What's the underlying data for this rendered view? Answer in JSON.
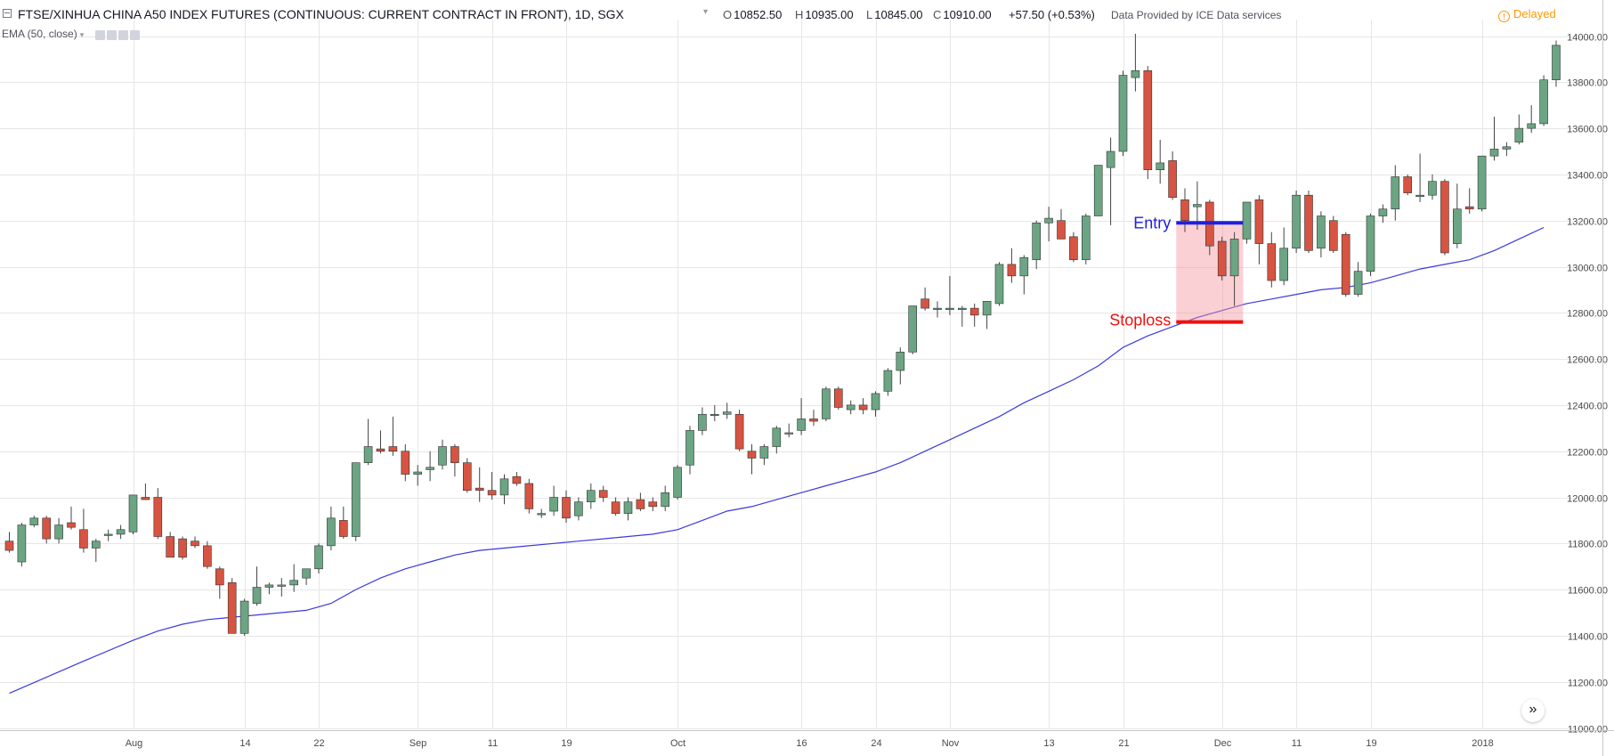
{
  "header": {
    "symbol": "FTSE/XINHUA CHINA A50 INDEX FUTURES (CONTINUOUS: CURRENT CONTRACT IN FRONT), 1D, SGX",
    "open_label": "O",
    "open_value": "10852.50",
    "high_label": "H",
    "high_value": "10935.00",
    "low_label": "L",
    "low_value": "10845.00",
    "close_label": "C",
    "close_value": "10910.00",
    "change": "+57.50 (+0.53%)",
    "provider": "Data Provided by ICE Data services",
    "delayed_label": "Delayed",
    "delayed_icon": "!"
  },
  "indicator": {
    "label": "EMA (50, close)"
  },
  "scroll_button": {
    "icon": "»"
  },
  "colors": {
    "up": "#6ba583",
    "down": "#d75442",
    "wick": "#444444",
    "ema": "#3a3adc",
    "entry": "#1f1fe0",
    "stoploss": "#ee1111",
    "zone": "rgba(247,150,160,0.45)",
    "grid": "#e6e6e6"
  },
  "chart_data": {
    "type": "candlestick",
    "ylim": [
      11000,
      14000
    ],
    "y_ticks": [
      "14000.00",
      "13800.00",
      "13600.00",
      "13400.00",
      "13200.00",
      "13000.00",
      "12800.00",
      "12600.00",
      "12400.00",
      "12200.00",
      "12000.00",
      "11800.00",
      "11600.00",
      "11400.00",
      "11200.00",
      "11000.00"
    ],
    "x_ticks": [
      {
        "label": "Aug",
        "index": 10
      },
      {
        "label": "14",
        "index": 19
      },
      {
        "label": "22",
        "index": 25
      },
      {
        "label": "Sep",
        "index": 33
      },
      {
        "label": "11",
        "index": 39
      },
      {
        "label": "19",
        "index": 45
      },
      {
        "label": "Oct",
        "index": 54
      },
      {
        "label": "16",
        "index": 64
      },
      {
        "label": "24",
        "index": 70
      },
      {
        "label": "Nov",
        "index": 76
      },
      {
        "label": "13",
        "index": 84
      },
      {
        "label": "21",
        "index": 90
      },
      {
        "label": "Dec",
        "index": 98
      },
      {
        "label": "11",
        "index": 104
      },
      {
        "label": "19",
        "index": 110
      },
      {
        "label": "2018",
        "index": 119
      }
    ],
    "candles": [
      {
        "o": 11810,
        "h": 11850,
        "l": 11760,
        "c": 11770
      },
      {
        "o": 11720,
        "h": 11890,
        "l": 11700,
        "c": 11880
      },
      {
        "o": 11880,
        "h": 11920,
        "l": 11870,
        "c": 11910
      },
      {
        "o": 11910,
        "h": 11920,
        "l": 11800,
        "c": 11820
      },
      {
        "o": 11820,
        "h": 11910,
        "l": 11800,
        "c": 11880
      },
      {
        "o": 11890,
        "h": 11960,
        "l": 11860,
        "c": 11870
      },
      {
        "o": 11860,
        "h": 11950,
        "l": 11760,
        "c": 11780
      },
      {
        "o": 11780,
        "h": 11820,
        "l": 11720,
        "c": 11810
      },
      {
        "o": 11840,
        "h": 11860,
        "l": 11810,
        "c": 11840
      },
      {
        "o": 11840,
        "h": 11880,
        "l": 11820,
        "c": 11860
      },
      {
        "o": 11850,
        "h": 12010,
        "l": 11840,
        "c": 12010
      },
      {
        "o": 12000,
        "h": 12060,
        "l": 11990,
        "c": 11990
      },
      {
        "o": 12000,
        "h": 12040,
        "l": 11820,
        "c": 11830
      },
      {
        "o": 11830,
        "h": 11850,
        "l": 11740,
        "c": 11740
      },
      {
        "o": 11820,
        "h": 11830,
        "l": 11730,
        "c": 11740
      },
      {
        "o": 11810,
        "h": 11830,
        "l": 11780,
        "c": 11790
      },
      {
        "o": 11790,
        "h": 11810,
        "l": 11690,
        "c": 11700
      },
      {
        "o": 11690,
        "h": 11700,
        "l": 11560,
        "c": 11620
      },
      {
        "o": 11630,
        "h": 11650,
        "l": 11410,
        "c": 11410
      },
      {
        "o": 11410,
        "h": 11560,
        "l": 11400,
        "c": 11550
      },
      {
        "o": 11540,
        "h": 11700,
        "l": 11530,
        "c": 11610
      },
      {
        "o": 11610,
        "h": 11630,
        "l": 11580,
        "c": 11620
      },
      {
        "o": 11620,
        "h": 11650,
        "l": 11570,
        "c": 11620
      },
      {
        "o": 11620,
        "h": 11710,
        "l": 11590,
        "c": 11640
      },
      {
        "o": 11650,
        "h": 11690,
        "l": 11620,
        "c": 11690
      },
      {
        "o": 11690,
        "h": 11800,
        "l": 11670,
        "c": 11790
      },
      {
        "o": 11790,
        "h": 11960,
        "l": 11770,
        "c": 11910
      },
      {
        "o": 11900,
        "h": 11960,
        "l": 11820,
        "c": 11830
      },
      {
        "o": 11830,
        "h": 12150,
        "l": 11810,
        "c": 12150
      },
      {
        "o": 12150,
        "h": 12340,
        "l": 12140,
        "c": 12220
      },
      {
        "o": 12210,
        "h": 12290,
        "l": 12190,
        "c": 12200
      },
      {
        "o": 12220,
        "h": 12350,
        "l": 12180,
        "c": 12200
      },
      {
        "o": 12200,
        "h": 12230,
        "l": 12070,
        "c": 12100
      },
      {
        "o": 12100,
        "h": 12140,
        "l": 12050,
        "c": 12110
      },
      {
        "o": 12120,
        "h": 12200,
        "l": 12070,
        "c": 12130
      },
      {
        "o": 12140,
        "h": 12250,
        "l": 12120,
        "c": 12220
      },
      {
        "o": 12220,
        "h": 12230,
        "l": 12090,
        "c": 12150
      },
      {
        "o": 12150,
        "h": 12170,
        "l": 12020,
        "c": 12030
      },
      {
        "o": 12040,
        "h": 12130,
        "l": 11980,
        "c": 12030
      },
      {
        "o": 12030,
        "h": 12110,
        "l": 11990,
        "c": 12010
      },
      {
        "o": 12010,
        "h": 12100,
        "l": 11970,
        "c": 12080
      },
      {
        "o": 12090,
        "h": 12110,
        "l": 12050,
        "c": 12060
      },
      {
        "o": 12060,
        "h": 12080,
        "l": 11930,
        "c": 11950
      },
      {
        "o": 11930,
        "h": 11950,
        "l": 11910,
        "c": 11930
      },
      {
        "o": 11940,
        "h": 12050,
        "l": 11920,
        "c": 12000
      },
      {
        "o": 12000,
        "h": 12030,
        "l": 11890,
        "c": 11910
      },
      {
        "o": 11920,
        "h": 12000,
        "l": 11900,
        "c": 11980
      },
      {
        "o": 11980,
        "h": 12060,
        "l": 11950,
        "c": 12030
      },
      {
        "o": 12030,
        "h": 12050,
        "l": 11980,
        "c": 12000
      },
      {
        "o": 11980,
        "h": 12000,
        "l": 11920,
        "c": 11930
      },
      {
        "o": 11930,
        "h": 12000,
        "l": 11900,
        "c": 11980
      },
      {
        "o": 11990,
        "h": 12020,
        "l": 11940,
        "c": 11950
      },
      {
        "o": 11980,
        "h": 12000,
        "l": 11940,
        "c": 11960
      },
      {
        "o": 11960,
        "h": 12050,
        "l": 11940,
        "c": 12020
      },
      {
        "o": 12000,
        "h": 12140,
        "l": 11990,
        "c": 12130
      },
      {
        "o": 12140,
        "h": 12310,
        "l": 12100,
        "c": 12290
      },
      {
        "o": 12290,
        "h": 12390,
        "l": 12270,
        "c": 12360
      },
      {
        "o": 12360,
        "h": 12400,
        "l": 12330,
        "c": 12360
      },
      {
        "o": 12360,
        "h": 12410,
        "l": 12340,
        "c": 12370
      },
      {
        "o": 12360,
        "h": 12380,
        "l": 12200,
        "c": 12210
      },
      {
        "o": 12200,
        "h": 12230,
        "l": 12100,
        "c": 12170
      },
      {
        "o": 12170,
        "h": 12230,
        "l": 12140,
        "c": 12220
      },
      {
        "o": 12220,
        "h": 12310,
        "l": 12190,
        "c": 12300
      },
      {
        "o": 12280,
        "h": 12320,
        "l": 12260,
        "c": 12280
      },
      {
        "o": 12290,
        "h": 12430,
        "l": 12270,
        "c": 12340
      },
      {
        "o": 12340,
        "h": 12380,
        "l": 12310,
        "c": 12330
      },
      {
        "o": 12340,
        "h": 12480,
        "l": 12330,
        "c": 12470
      },
      {
        "o": 12470,
        "h": 12480,
        "l": 12380,
        "c": 12390
      },
      {
        "o": 12380,
        "h": 12420,
        "l": 12360,
        "c": 12400
      },
      {
        "o": 12400,
        "h": 12430,
        "l": 12360,
        "c": 12380
      },
      {
        "o": 12380,
        "h": 12460,
        "l": 12350,
        "c": 12450
      },
      {
        "o": 12460,
        "h": 12560,
        "l": 12440,
        "c": 12550
      },
      {
        "o": 12550,
        "h": 12650,
        "l": 12490,
        "c": 12630
      },
      {
        "o": 12630,
        "h": 12830,
        "l": 12620,
        "c": 12830
      },
      {
        "o": 12860,
        "h": 12910,
        "l": 12810,
        "c": 12820
      },
      {
        "o": 12820,
        "h": 12850,
        "l": 12780,
        "c": 12820
      },
      {
        "o": 12820,
        "h": 12960,
        "l": 12790,
        "c": 12820
      },
      {
        "o": 12820,
        "h": 12830,
        "l": 12740,
        "c": 12820
      },
      {
        "o": 12820,
        "h": 12840,
        "l": 12740,
        "c": 12790
      },
      {
        "o": 12790,
        "h": 12850,
        "l": 12730,
        "c": 12850
      },
      {
        "o": 12840,
        "h": 13020,
        "l": 12830,
        "c": 13010
      },
      {
        "o": 13010,
        "h": 13080,
        "l": 12930,
        "c": 12960
      },
      {
        "o": 12960,
        "h": 13050,
        "l": 12880,
        "c": 13040
      },
      {
        "o": 13030,
        "h": 13200,
        "l": 12990,
        "c": 13190
      },
      {
        "o": 13190,
        "h": 13260,
        "l": 13110,
        "c": 13210
      },
      {
        "o": 13200,
        "h": 13250,
        "l": 13120,
        "c": 13120
      },
      {
        "o": 13130,
        "h": 13150,
        "l": 13020,
        "c": 13030
      },
      {
        "o": 13030,
        "h": 13230,
        "l": 13010,
        "c": 13220
      },
      {
        "o": 13220,
        "h": 13440,
        "l": 13220,
        "c": 13440
      },
      {
        "o": 13430,
        "h": 13560,
        "l": 13180,
        "c": 13500
      },
      {
        "o": 13500,
        "h": 13850,
        "l": 13480,
        "c": 13830
      },
      {
        "o": 13820,
        "h": 14010,
        "l": 13760,
        "c": 13850
      },
      {
        "o": 13850,
        "h": 13870,
        "l": 13380,
        "c": 13420
      },
      {
        "o": 13420,
        "h": 13550,
        "l": 13360,
        "c": 13450
      },
      {
        "o": 13460,
        "h": 13500,
        "l": 13290,
        "c": 13300
      },
      {
        "o": 13290,
        "h": 13340,
        "l": 13150,
        "c": 13200
      },
      {
        "o": 13260,
        "h": 13370,
        "l": 13160,
        "c": 13270
      },
      {
        "o": 13280,
        "h": 13290,
        "l": 13050,
        "c": 13090
      },
      {
        "o": 13110,
        "h": 13130,
        "l": 12940,
        "c": 12960
      },
      {
        "o": 12960,
        "h": 13150,
        "l": 12830,
        "c": 13120
      },
      {
        "o": 13120,
        "h": 13280,
        "l": 13100,
        "c": 13280
      },
      {
        "o": 13290,
        "h": 13310,
        "l": 13010,
        "c": 13100
      },
      {
        "o": 13100,
        "h": 13150,
        "l": 12910,
        "c": 12940
      },
      {
        "o": 12940,
        "h": 13170,
        "l": 12920,
        "c": 13080
      },
      {
        "o": 13080,
        "h": 13330,
        "l": 13060,
        "c": 13310
      },
      {
        "o": 13310,
        "h": 13330,
        "l": 13060,
        "c": 13070
      },
      {
        "o": 13080,
        "h": 13240,
        "l": 13040,
        "c": 13220
      },
      {
        "o": 13200,
        "h": 13220,
        "l": 13060,
        "c": 13070
      },
      {
        "o": 13140,
        "h": 13150,
        "l": 12870,
        "c": 12880
      },
      {
        "o": 12880,
        "h": 13020,
        "l": 12870,
        "c": 12980
      },
      {
        "o": 12980,
        "h": 13230,
        "l": 12960,
        "c": 13220
      },
      {
        "o": 13220,
        "h": 13270,
        "l": 13190,
        "c": 13250
      },
      {
        "o": 13250,
        "h": 13440,
        "l": 13200,
        "c": 13390
      },
      {
        "o": 13390,
        "h": 13400,
        "l": 13310,
        "c": 13320
      },
      {
        "o": 13310,
        "h": 13490,
        "l": 13280,
        "c": 13310
      },
      {
        "o": 13310,
        "h": 13400,
        "l": 13290,
        "c": 13370
      },
      {
        "o": 13370,
        "h": 13380,
        "l": 13050,
        "c": 13060
      },
      {
        "o": 13100,
        "h": 13360,
        "l": 13080,
        "c": 13250
      },
      {
        "o": 13260,
        "h": 13340,
        "l": 13230,
        "c": 13250
      },
      {
        "o": 13250,
        "h": 13480,
        "l": 13240,
        "c": 13480
      },
      {
        "o": 13480,
        "h": 13650,
        "l": 13460,
        "c": 13510
      },
      {
        "o": 13510,
        "h": 13540,
        "l": 13480,
        "c": 13520
      },
      {
        "o": 13540,
        "h": 13660,
        "l": 13530,
        "c": 13600
      },
      {
        "o": 13600,
        "h": 13700,
        "l": 13580,
        "c": 13620
      },
      {
        "o": 13620,
        "h": 13830,
        "l": 13610,
        "c": 13810
      },
      {
        "o": 13810,
        "h": 13980,
        "l": 13780,
        "c": 13960
      }
    ],
    "ema": {
      "name": "EMA (50, close)",
      "points": [
        [
          0,
          11150
        ],
        [
          6,
          11290
        ],
        [
          10,
          11380
        ],
        [
          12,
          11420
        ],
        [
          14,
          11450
        ],
        [
          16,
          11470
        ],
        [
          18,
          11480
        ],
        [
          20,
          11490
        ],
        [
          22,
          11500
        ],
        [
          24,
          11510
        ],
        [
          26,
          11540
        ],
        [
          28,
          11600
        ],
        [
          30,
          11650
        ],
        [
          32,
          11690
        ],
        [
          34,
          11720
        ],
        [
          36,
          11750
        ],
        [
          38,
          11770
        ],
        [
          40,
          11780
        ],
        [
          42,
          11790
        ],
        [
          44,
          11800
        ],
        [
          46,
          11810
        ],
        [
          48,
          11820
        ],
        [
          50,
          11830
        ],
        [
          52,
          11840
        ],
        [
          54,
          11860
        ],
        [
          56,
          11900
        ],
        [
          58,
          11940
        ],
        [
          60,
          11960
        ],
        [
          62,
          11990
        ],
        [
          64,
          12020
        ],
        [
          66,
          12050
        ],
        [
          68,
          12080
        ],
        [
          70,
          12110
        ],
        [
          72,
          12150
        ],
        [
          74,
          12200
        ],
        [
          76,
          12250
        ],
        [
          78,
          12300
        ],
        [
          80,
          12350
        ],
        [
          82,
          12410
        ],
        [
          84,
          12460
        ],
        [
          86,
          12510
        ],
        [
          88,
          12570
        ],
        [
          90,
          12650
        ],
        [
          92,
          12700
        ],
        [
          94,
          12740
        ],
        [
          96,
          12780
        ],
        [
          98,
          12810
        ],
        [
          100,
          12840
        ],
        [
          102,
          12860
        ],
        [
          104,
          12880
        ],
        [
          106,
          12900
        ],
        [
          108,
          12910
        ],
        [
          110,
          12930
        ],
        [
          112,
          12960
        ],
        [
          114,
          12990
        ],
        [
          116,
          13010
        ],
        [
          118,
          13030
        ],
        [
          120,
          13070
        ],
        [
          122,
          13120
        ],
        [
          124,
          13170
        ]
      ]
    },
    "annotations": {
      "entry_label": "Entry",
      "entry_price": 13190,
      "stoploss_label": "Stoploss",
      "stoploss_price": 12760,
      "zone_start": 94.3,
      "zone_end": 99.7
    }
  }
}
